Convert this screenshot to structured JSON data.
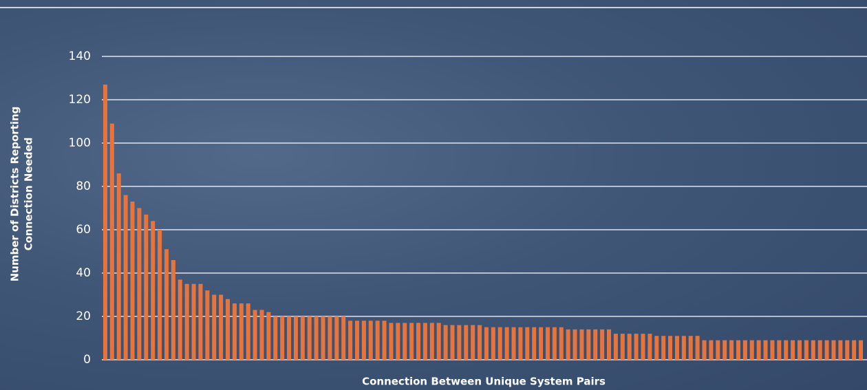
{
  "chart_data": {
    "type": "bar",
    "ylabel": [
      "Number of Districts Reporting",
      "Connection Needed"
    ],
    "xlabel": "Connection Between Unique System Pairs",
    "color": "#e8743b",
    "ylim": [
      0,
      140
    ],
    "yticks": [
      0,
      20,
      40,
      60,
      80,
      100,
      120,
      140
    ],
    "grid": true,
    "categories": [
      null,
      null,
      null,
      null,
      null,
      null,
      null,
      null,
      null,
      null,
      null,
      null,
      null,
      null,
      null,
      null,
      null,
      null,
      null,
      null,
      null,
      null,
      null,
      null,
      null,
      null,
      null,
      null,
      null,
      null,
      null,
      null,
      null,
      null,
      null,
      null,
      null,
      null,
      null,
      null,
      null,
      null,
      null,
      null,
      null,
      null,
      null,
      null,
      null,
      null,
      null,
      null,
      null,
      null,
      null,
      null,
      null,
      null,
      null,
      null,
      null,
      null,
      null,
      null,
      null,
      null,
      null,
      null,
      null,
      null,
      null,
      null,
      null,
      null,
      null,
      null,
      null,
      null,
      null,
      null,
      null,
      null,
      null,
      null,
      null,
      null,
      null,
      null,
      null,
      null,
      null,
      null,
      null,
      null,
      null,
      null,
      null,
      null,
      null,
      null,
      null,
      null,
      null,
      null,
      null,
      null,
      null,
      null,
      null,
      null,
      null,
      null
    ],
    "values": [
      127,
      109,
      86,
      76,
      73,
      70,
      67,
      64,
      60,
      51,
      46,
      37,
      35,
      35,
      35,
      32,
      30,
      30,
      28,
      26,
      26,
      26,
      23,
      23,
      22,
      20,
      20,
      20,
      20,
      20,
      20,
      20,
      20,
      20,
      20,
      20,
      18,
      18,
      18,
      18,
      18,
      18,
      17,
      17,
      17,
      17,
      17,
      17,
      17,
      17,
      16,
      16,
      16,
      16,
      16,
      16,
      15,
      15,
      15,
      15,
      15,
      15,
      15,
      15,
      15,
      15,
      15,
      15,
      14,
      14,
      14,
      14,
      14,
      14,
      14,
      12,
      12,
      12,
      12,
      12,
      12,
      11,
      11,
      11,
      11,
      11,
      11,
      11,
      9,
      9,
      9,
      9,
      9,
      9,
      9,
      9,
      9,
      9,
      9,
      9,
      9,
      9,
      9,
      9,
      9,
      9,
      9,
      9,
      9,
      9,
      9,
      9
    ]
  }
}
